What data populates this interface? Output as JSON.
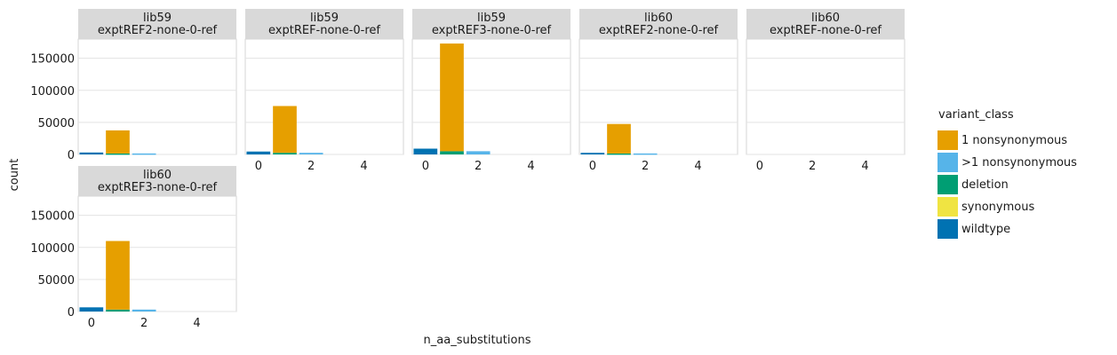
{
  "chart_data": {
    "type": "bar",
    "stacked": true,
    "xlabel": "n_aa_substitutions",
    "ylabel": "count",
    "ylim": [
      0,
      180000
    ],
    "y_ticks": [
      0,
      50000,
      100000,
      150000
    ],
    "y_tick_labels": [
      "0",
      "50000",
      "100000",
      "150000"
    ],
    "xlim": [
      -0.5,
      5.5
    ],
    "x_ticks": [
      0,
      2,
      4
    ],
    "x_tick_labels": [
      "0",
      "2",
      "4"
    ],
    "grid": true,
    "legend": {
      "title": "variant_class",
      "position": "right",
      "entries": [
        {
          "label": "1 nonsynonymous",
          "color": "#E69F00"
        },
        {
          "label": ">1 nonsynonymous",
          "color": "#56B4E9"
        },
        {
          "label": "deletion",
          "color": "#009E73"
        },
        {
          "label": "synonymous",
          "color": "#F0E442"
        },
        {
          "label": "wildtype",
          "color": "#0072B2"
        }
      ]
    },
    "facets": [
      {
        "library": "lib59",
        "sample": "exptREF2-none-0-ref",
        "bars": [
          {
            "x": 0,
            "class": "wildtype",
            "value": 3000
          },
          {
            "x": 1,
            "class": "deletion",
            "value": 1500
          },
          {
            "x": 1,
            "class": "1 nonsynonymous",
            "value": 36000
          },
          {
            "x": 2,
            "class": ">1 nonsynonymous",
            "value": 1500
          }
        ]
      },
      {
        "library": "lib59",
        "sample": "exptREF-none-0-ref",
        "bars": [
          {
            "x": 0,
            "class": "wildtype",
            "value": 4500
          },
          {
            "x": 1,
            "class": "deletion",
            "value": 2500
          },
          {
            "x": 1,
            "class": "1 nonsynonymous",
            "value": 73000
          },
          {
            "x": 2,
            "class": ">1 nonsynonymous",
            "value": 2500
          }
        ]
      },
      {
        "library": "lib59",
        "sample": "exptREF3-none-0-ref",
        "bars": [
          {
            "x": 0,
            "class": "wildtype",
            "value": 9000
          },
          {
            "x": 1,
            "class": "deletion",
            "value": 5000
          },
          {
            "x": 1,
            "class": "1 nonsynonymous",
            "value": 168000
          },
          {
            "x": 2,
            "class": ">1 nonsynonymous",
            "value": 5000
          }
        ]
      },
      {
        "library": "lib60",
        "sample": "exptREF2-none-0-ref",
        "bars": [
          {
            "x": 0,
            "class": "wildtype",
            "value": 2500
          },
          {
            "x": 1,
            "class": "deletion",
            "value": 1500
          },
          {
            "x": 1,
            "class": "1 nonsynonymous",
            "value": 46000
          },
          {
            "x": 2,
            "class": ">1 nonsynonymous",
            "value": 1500
          }
        ]
      },
      {
        "library": "lib60",
        "sample": "exptREF-none-0-ref",
        "bars": []
      },
      {
        "library": "lib60",
        "sample": "exptREF3-none-0-ref",
        "bars": [
          {
            "x": 0,
            "class": "wildtype",
            "value": 6500
          },
          {
            "x": 1,
            "class": "deletion",
            "value": 3000
          },
          {
            "x": 1,
            "class": "1 nonsynonymous",
            "value": 107000
          },
          {
            "x": 2,
            "class": ">1 nonsynonymous",
            "value": 3000
          }
        ]
      }
    ]
  }
}
